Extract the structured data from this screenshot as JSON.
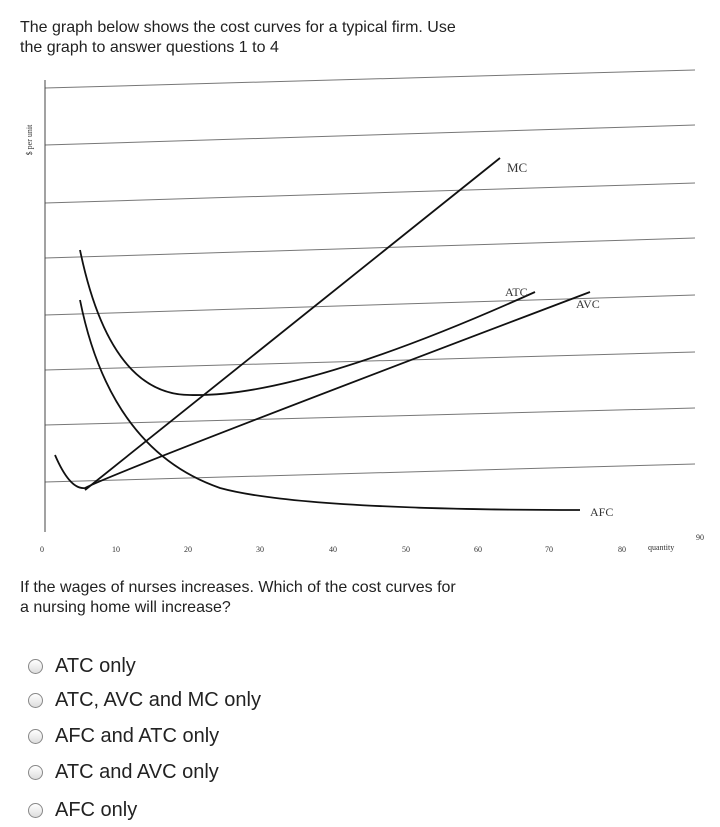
{
  "intro": [
    "The graph below shows the cost curves for a typical firm. Use",
    "the graph to answer questions 1 to 4"
  ],
  "graph": {
    "y_label": "$ per unit",
    "x_label": "quantity",
    "x_ticks": [
      "0",
      "10",
      "20",
      "30",
      "40",
      "50",
      "60",
      "70",
      "80",
      "90"
    ],
    "curves": {
      "mc": "MC",
      "atc": "ATC",
      "avc": "AVC",
      "afc": "AFC"
    }
  },
  "question": [
    "If the wages of nurses increases. Which of the cost curves for",
    "a nursing home will increase?"
  ],
  "options": [
    "ATC only",
    "ATC, AVC and MC only",
    "AFC and ATC only",
    "ATC and AVC only",
    "AFC only"
  ]
}
